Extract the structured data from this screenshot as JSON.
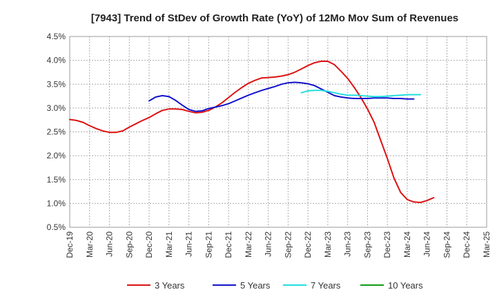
{
  "chart_data": {
    "type": "line",
    "title": "[7943]  Trend of StDev of Growth Rate (YoY) of 12Mo Mov Sum of Revenues",
    "xlabel": "",
    "ylabel": "",
    "ylim": [
      0.5,
      4.5
    ],
    "yticks": [
      "0.5%",
      "1.0%",
      "1.5%",
      "2.0%",
      "2.5%",
      "3.0%",
      "3.5%",
      "4.0%",
      "4.5%"
    ],
    "ytick_values": [
      0.5,
      1.0,
      1.5,
      2.0,
      2.5,
      3.0,
      3.5,
      4.0,
      4.5
    ],
    "xticks": [
      "Dec-19",
      "Mar-20",
      "Jun-20",
      "Sep-20",
      "Dec-20",
      "Mar-21",
      "Jun-21",
      "Sep-21",
      "Dec-21",
      "Mar-22",
      "Jun-22",
      "Sep-22",
      "Dec-22",
      "Mar-23",
      "Jun-23",
      "Sep-23",
      "Dec-23",
      "Mar-24",
      "Jun-24",
      "Sep-24",
      "Dec-24",
      "Mar-25"
    ],
    "grid": true,
    "legend_position": "bottom",
    "series": [
      {
        "name": "3 Years",
        "color": "#dd1111",
        "start_index": 0,
        "values": [
          2.76,
          2.74,
          2.7,
          2.63,
          2.57,
          2.52,
          2.49,
          2.49,
          2.52,
          2.6,
          2.67,
          2.74,
          2.8,
          2.88,
          2.95,
          2.98,
          2.98,
          2.97,
          2.93,
          2.9,
          2.91,
          2.95,
          3.02,
          3.11,
          3.22,
          3.33,
          3.43,
          3.52,
          3.58,
          3.63,
          3.64,
          3.65,
          3.67,
          3.7,
          3.75,
          3.82,
          3.89,
          3.95,
          3.98,
          3.98,
          3.91,
          3.77,
          3.62,
          3.43,
          3.22,
          2.98,
          2.7,
          2.32,
          1.94,
          1.53,
          1.23,
          1.08,
          1.03,
          1.02,
          1.06,
          1.12
        ]
      },
      {
        "name": "5 Years",
        "color": "#1111cc",
        "start_index": 12,
        "values": [
          3.15,
          3.23,
          3.26,
          3.24,
          3.16,
          3.06,
          2.97,
          2.93,
          2.94,
          2.99,
          3.02,
          3.05,
          3.09,
          3.15,
          3.21,
          3.27,
          3.32,
          3.37,
          3.41,
          3.45,
          3.5,
          3.53,
          3.54,
          3.53,
          3.51,
          3.47,
          3.4,
          3.33,
          3.26,
          3.23,
          3.21,
          3.2,
          3.2,
          3.2,
          3.21,
          3.21,
          3.21,
          3.2,
          3.2,
          3.19,
          3.19
        ]
      },
      {
        "name": "7 Years",
        "color": "#22dddd",
        "start_index": 35,
        "values": [
          3.32,
          3.36,
          3.37,
          3.37,
          3.35,
          3.32,
          3.29,
          3.27,
          3.27,
          3.26,
          3.25,
          3.24,
          3.24,
          3.25,
          3.26,
          3.27,
          3.28,
          3.28,
          3.28
        ]
      },
      {
        "name": "10 Years",
        "color": "#119911",
        "start_index": 0,
        "values": []
      }
    ]
  }
}
